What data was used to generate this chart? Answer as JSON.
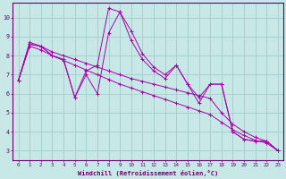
{
  "xlabel": "Windchill (Refroidissement éolien,°C)",
  "background_color": "#c8e8e8",
  "grid_color": "#a8d0d0",
  "line_color": "#aa00aa",
  "x": [
    0,
    1,
    2,
    3,
    4,
    5,
    6,
    7,
    8,
    9,
    10,
    11,
    12,
    13,
    14,
    15,
    16,
    17,
    18,
    19,
    20,
    21,
    22,
    23
  ],
  "s1": [
    6.7,
    8.6,
    8.5,
    8.0,
    7.8,
    5.8,
    7.2,
    7.5,
    10.5,
    10.3,
    9.3,
    8.1,
    7.4,
    7.0,
    7.5,
    6.5,
    5.8,
    6.5,
    6.5,
    4.0,
    3.6,
    3.5,
    3.5,
    3.0
  ],
  "s2": [
    6.7,
    8.6,
    8.5,
    8.0,
    7.8,
    5.8,
    7.0,
    6.0,
    9.2,
    10.3,
    8.8,
    7.8,
    7.2,
    6.8,
    7.5,
    6.5,
    5.5,
    6.5,
    6.5,
    4.0,
    3.6,
    3.5,
    3.5,
    3.0
  ],
  "s3": [
    6.7,
    8.7,
    8.5,
    8.2,
    8.0,
    7.8,
    7.6,
    7.4,
    7.2,
    7.0,
    6.8,
    6.65,
    6.5,
    6.35,
    6.2,
    6.05,
    5.9,
    5.75,
    5.0,
    4.4,
    4.0,
    3.7,
    3.5,
    3.0
  ],
  "s4": [
    6.7,
    8.5,
    8.3,
    8.0,
    7.75,
    7.5,
    7.25,
    7.0,
    6.75,
    6.5,
    6.3,
    6.1,
    5.9,
    5.7,
    5.5,
    5.3,
    5.1,
    4.9,
    4.5,
    4.1,
    3.8,
    3.55,
    3.4,
    3.0
  ],
  "ylim": [
    2.5,
    10.8
  ],
  "xlim": [
    -0.5,
    23.5
  ],
  "yticks": [
    3,
    4,
    5,
    6,
    7,
    8,
    9,
    10
  ],
  "xticks": [
    0,
    1,
    2,
    3,
    4,
    5,
    6,
    7,
    8,
    9,
    10,
    11,
    12,
    13,
    14,
    15,
    16,
    17,
    18,
    19,
    20,
    21,
    22,
    23
  ]
}
